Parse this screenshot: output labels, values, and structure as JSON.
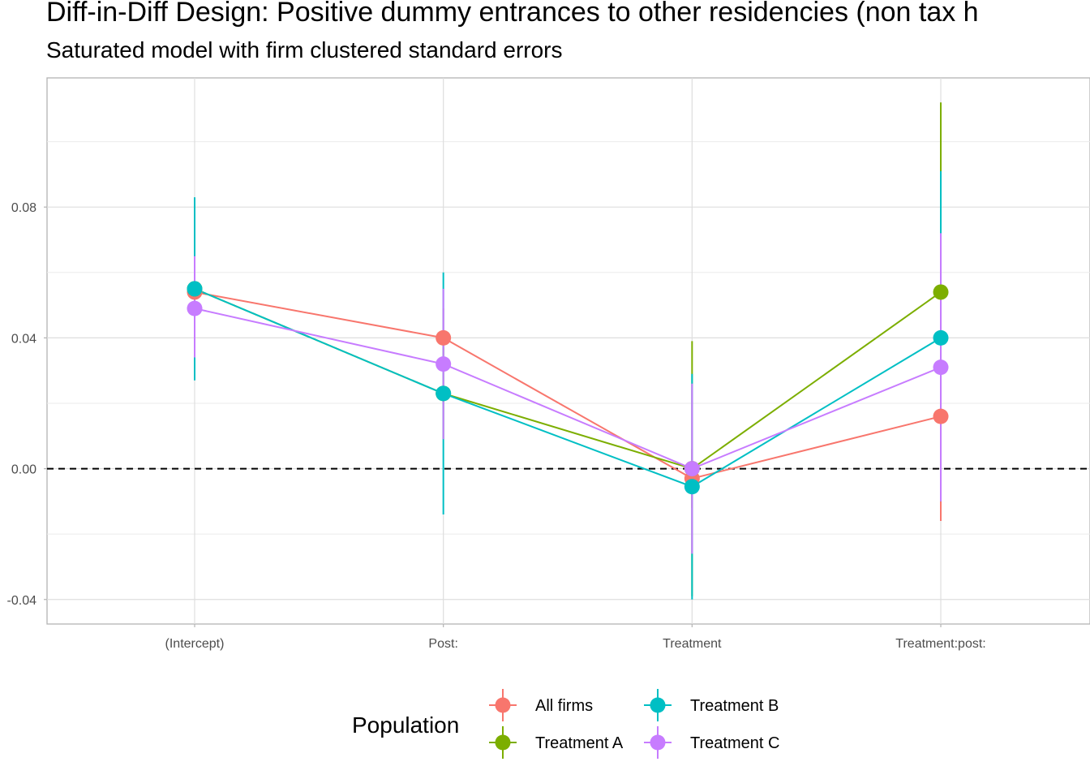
{
  "title": "Diff-in-Diff Design: Positive dummy entrances to other residencies (non tax h",
  "subtitle": "Saturated model with firm clustered standard errors",
  "chart_data": {
    "type": "line",
    "title": "Diff-in-Diff Design: Positive dummy entrances to other residencies (non tax h",
    "subtitle": "Saturated model with firm clustered standard errors",
    "xlabel": "",
    "ylabel": "",
    "categories": [
      "(Intercept)",
      "Post:",
      "Treatment",
      "Treatment:post:"
    ],
    "y_ticks": [
      -0.04,
      0.0,
      0.04,
      0.08
    ],
    "y_tick_labels": [
      "-0.04",
      "0.00",
      "0.04",
      "0.08"
    ],
    "ylim": [
      -0.0475,
      0.1195
    ],
    "grid": true,
    "reference_line": {
      "y": 0,
      "style": "dashed"
    },
    "legend": {
      "title": "Population",
      "position": "bottom"
    },
    "series": [
      {
        "name": "All firms",
        "color": "#F8766D",
        "values": [
          0.054,
          0.04,
          -0.003,
          0.016
        ],
        "lower": [
          0.044,
          0.031,
          -0.012,
          -0.016
        ],
        "upper": [
          0.064,
          0.049,
          0.006,
          0.048
        ]
      },
      {
        "name": "Treatment A",
        "color": "#7CAE00",
        "values": [
          0.055,
          0.023,
          0.0,
          0.054
        ],
        "lower": [
          0.028,
          0.009,
          -0.039,
          -0.004
        ],
        "upper": [
          0.082,
          0.037,
          0.039,
          0.112
        ]
      },
      {
        "name": "Treatment B",
        "color": "#00BFC4",
        "values": [
          0.055,
          0.023,
          -0.0055,
          0.04
        ],
        "lower": [
          0.027,
          -0.014,
          -0.04,
          -0.01
        ],
        "upper": [
          0.083,
          0.06,
          0.029,
          0.091
        ]
      },
      {
        "name": "Treatment C",
        "color": "#C77CFF",
        "values": [
          0.049,
          0.032,
          0.0,
          0.031
        ],
        "lower": [
          0.034,
          0.009,
          -0.026,
          -0.01
        ],
        "upper": [
          0.065,
          0.055,
          0.026,
          0.072
        ]
      }
    ]
  }
}
